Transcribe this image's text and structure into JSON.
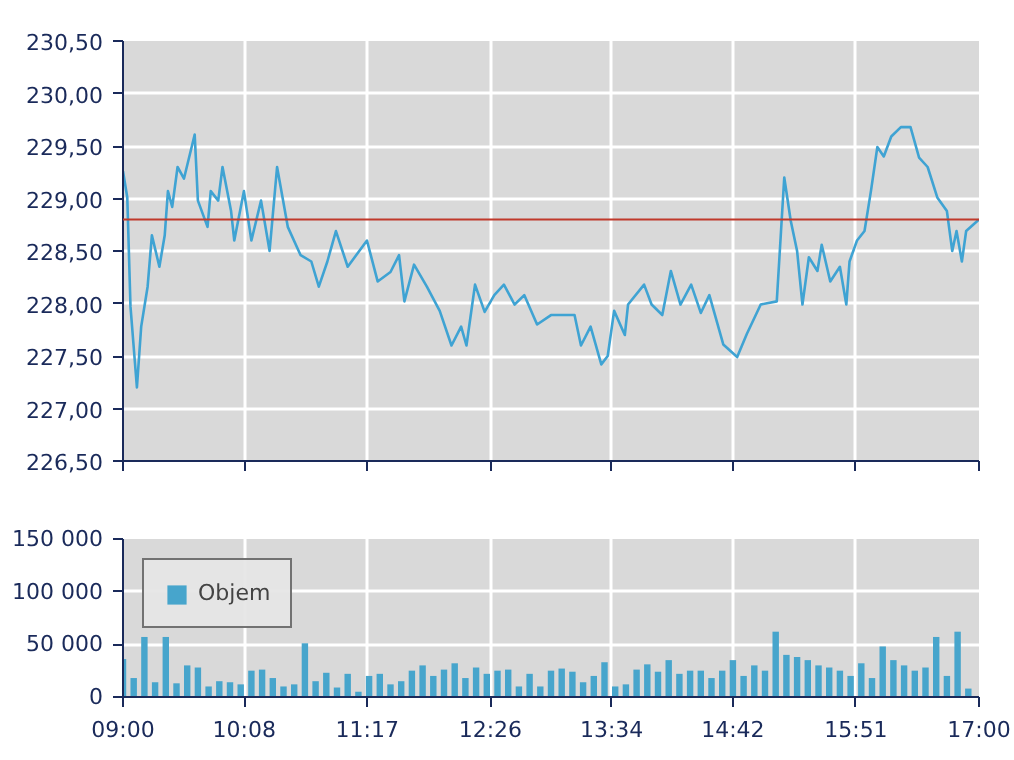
{
  "chart_data": [
    {
      "type": "line",
      "color": "#3fa3d3",
      "tick_labels": "y",
      "grid": true,
      "x": [
        9.0,
        9.04,
        9.07,
        9.13,
        9.17,
        9.23,
        9.27,
        9.34,
        9.39,
        9.42,
        9.46,
        9.51,
        9.57,
        9.67,
        9.7,
        9.79,
        9.82,
        9.89,
        9.93,
        10.01,
        10.04,
        10.13,
        10.2,
        10.29,
        10.37,
        10.44,
        10.54,
        10.66,
        10.76,
        10.83,
        10.91,
        10.99,
        11.1,
        11.28,
        11.38,
        11.5,
        11.58,
        11.63,
        11.72,
        11.84,
        11.96,
        12.07,
        12.16,
        12.21,
        12.29,
        12.38,
        12.47,
        12.56,
        12.66,
        12.75,
        12.87,
        13.0,
        13.22,
        13.28,
        13.37,
        13.47,
        13.53,
        13.59,
        13.69,
        13.72,
        13.87,
        13.94,
        14.04,
        14.12,
        14.21,
        14.31,
        14.4,
        14.48,
        14.61,
        14.74,
        14.83,
        14.96,
        15.11,
        15.18,
        15.24,
        15.3,
        15.35,
        15.41,
        15.49,
        15.53,
        15.61,
        15.7,
        15.76,
        15.79,
        15.86,
        15.93,
        15.99,
        16.05,
        16.11,
        16.18,
        16.27,
        16.36,
        16.44,
        16.52,
        16.61,
        16.7,
        16.75,
        16.79,
        16.84,
        16.88,
        17.0
      ],
      "values": [
        229.26,
        229.01,
        227.97,
        227.2,
        227.78,
        228.16,
        228.65,
        228.35,
        228.65,
        229.07,
        228.92,
        229.3,
        229.19,
        229.61,
        228.98,
        228.73,
        229.07,
        228.98,
        229.3,
        228.88,
        228.6,
        229.07,
        228.6,
        228.98,
        228.5,
        229.3,
        228.73,
        228.46,
        228.4,
        228.16,
        228.4,
        228.69,
        228.35,
        228.6,
        228.21,
        228.3,
        228.46,
        228.02,
        228.37,
        228.16,
        227.93,
        227.6,
        227.78,
        227.6,
        228.18,
        227.92,
        228.08,
        228.18,
        227.99,
        228.08,
        227.8,
        227.89,
        227.89,
        227.6,
        227.78,
        227.42,
        227.5,
        227.93,
        227.7,
        227.99,
        228.18,
        227.99,
        227.89,
        228.31,
        227.99,
        228.18,
        227.91,
        228.08,
        227.61,
        227.49,
        227.71,
        227.99,
        228.02,
        229.2,
        228.79,
        228.5,
        227.99,
        228.44,
        228.31,
        228.56,
        228.21,
        228.35,
        227.99,
        228.4,
        228.6,
        228.69,
        229.07,
        229.49,
        229.4,
        229.59,
        229.68,
        229.68,
        229.39,
        229.3,
        229.01,
        228.88,
        228.5,
        228.69,
        228.4,
        228.69,
        228.8
      ],
      "xlim": [
        9,
        17
      ],
      "xticks": [
        {
          "value": 9,
          "label": null
        },
        {
          "value": 10.133333,
          "label": null
        },
        {
          "value": 11.283333,
          "label": null
        },
        {
          "value": 12.433333,
          "label": null
        },
        {
          "value": 13.566667,
          "label": null
        },
        {
          "value": 14.7,
          "label": null
        },
        {
          "value": 15.85,
          "label": null
        },
        {
          "value": 17,
          "label": null
        }
      ],
      "ylim": [
        226.5,
        230.5
      ],
      "yticks": [
        {
          "value": 226.5,
          "label": "226,50"
        },
        {
          "value": 227,
          "label": "227,00"
        },
        {
          "value": 227.5,
          "label": "227,50"
        },
        {
          "value": 228,
          "label": "228,00"
        },
        {
          "value": 228.5,
          "label": "228,50"
        },
        {
          "value": 229,
          "label": "229,00"
        },
        {
          "value": 229.5,
          "label": "229,50"
        },
        {
          "value": 230,
          "label": "230,00"
        },
        {
          "value": 230.5,
          "label": "230,50"
        }
      ],
      "ref_lines": [
        {
          "axis": "y",
          "value": 228.8,
          "color": "#c0392b"
        }
      ]
    },
    {
      "type": "bar",
      "grid": true,
      "legend": "top left",
      "x": [
        9.0,
        9.1,
        9.2,
        9.3,
        9.4,
        9.5,
        9.6,
        9.7,
        9.8,
        9.9,
        10.0,
        10.1,
        10.2,
        10.3,
        10.4,
        10.5,
        10.6,
        10.7,
        10.8,
        10.9,
        11.0,
        11.1,
        11.2,
        11.3,
        11.4,
        11.5,
        11.6,
        11.7,
        11.8,
        11.9,
        12.0,
        12.1,
        12.2,
        12.3,
        12.4,
        12.5,
        12.6,
        12.7,
        12.8,
        12.9,
        13.0,
        13.1,
        13.2,
        13.3,
        13.4,
        13.5,
        13.6,
        13.7,
        13.8,
        13.9,
        14.0,
        14.1,
        14.2,
        14.3,
        14.4,
        14.5,
        14.6,
        14.7,
        14.8,
        14.9,
        15.0,
        15.1,
        15.2,
        15.3,
        15.4,
        15.5,
        15.6,
        15.7,
        15.8,
        15.9,
        16.0,
        16.1,
        16.2,
        16.3,
        16.4,
        16.5,
        16.6,
        16.7,
        16.8,
        16.9
      ],
      "series": [
        {
          "name": "Objem",
          "color": "#47a5cc",
          "values": [
            36000,
            18000,
            57000,
            14000,
            57000,
            13000,
            30000,
            28000,
            10000,
            15000,
            14000,
            12000,
            25000,
            26000,
            18000,
            10000,
            12000,
            51000,
            15000,
            23000,
            9000,
            22000,
            5000,
            20000,
            22000,
            12000,
            15000,
            25000,
            30000,
            20000,
            26000,
            32000,
            18000,
            28000,
            22000,
            25000,
            26000,
            10000,
            22000,
            10000,
            25000,
            27000,
            24000,
            14000,
            20000,
            33000,
            10000,
            12000,
            26000,
            31000,
            24000,
            35000,
            22000,
            25000,
            25000,
            18000,
            25000,
            35000,
            20000,
            30000,
            25000,
            62000,
            40000,
            38000,
            35000,
            30000,
            28000,
            25000,
            20000,
            32000,
            18000,
            48000,
            35000,
            30000,
            25000,
            28000,
            57000,
            20000,
            62000,
            8000
          ]
        }
      ],
      "xlim": [
        9,
        17
      ],
      "xticks": [
        {
          "value": 9,
          "label": "09:00"
        },
        {
          "value": 10.133333,
          "label": "10:08"
        },
        {
          "value": 11.283333,
          "label": "11:17"
        },
        {
          "value": 12.433333,
          "label": "12:26"
        },
        {
          "value": 13.566667,
          "label": "13:34"
        },
        {
          "value": 14.7,
          "label": "14:42"
        },
        {
          "value": 15.85,
          "label": "15:51"
        },
        {
          "value": 17,
          "label": "17:00"
        }
      ],
      "ylim": [
        0,
        150000
      ],
      "yticks": [
        {
          "value": 0,
          "label": "0"
        },
        {
          "value": 50000,
          "label": "50 000"
        },
        {
          "value": 100000,
          "label": "100 000"
        },
        {
          "value": 150000,
          "label": "150 000"
        }
      ]
    }
  ]
}
